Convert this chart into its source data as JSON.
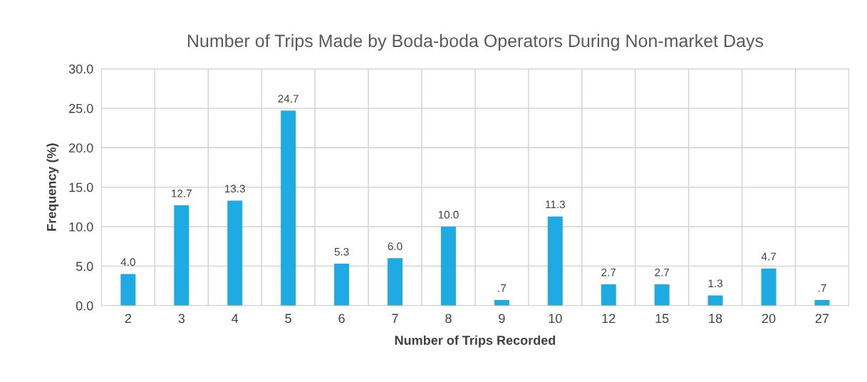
{
  "chart_data": {
    "type": "bar",
    "title": "Number of Trips Made by Boda-boda Operators During Non-market Days",
    "xlabel": "Number of Trips Recorded",
    "ylabel": "Frequency (%)",
    "categories": [
      "2",
      "3",
      "4",
      "5",
      "6",
      "7",
      "8",
      "9",
      "10",
      "12",
      "15",
      "18",
      "20",
      "27"
    ],
    "values": [
      4.0,
      12.7,
      13.3,
      24.7,
      5.3,
      6.0,
      10.0,
      0.7,
      11.3,
      2.7,
      2.7,
      1.3,
      4.7,
      0.7
    ],
    "value_labels": [
      "4.0",
      "12.7",
      "13.3",
      "24.7",
      "5.3",
      "6.0",
      "10.0",
      ".7",
      "11.3",
      "2.7",
      "2.7",
      "1.3",
      "4.7",
      ".7"
    ],
    "color": "#1eaae2",
    "ylim": [
      0,
      30
    ],
    "yticks": [
      {
        "value": 0,
        "label": "0.0"
      },
      {
        "value": 5,
        "label": "5.0"
      },
      {
        "value": 10,
        "label": "10.0"
      },
      {
        "value": 15,
        "label": "15.0"
      },
      {
        "value": 20,
        "label": "20.0"
      },
      {
        "value": 25,
        "label": "25.0"
      },
      {
        "value": 30,
        "label": "30.0"
      }
    ],
    "grid": true
  }
}
